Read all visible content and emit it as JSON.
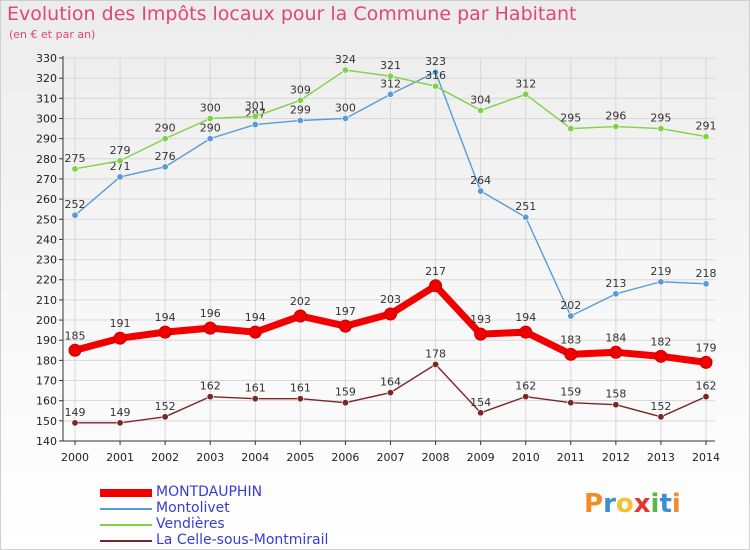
{
  "header": {
    "title": "Evolution des Impôts locaux pour la Commune par Habitant",
    "subtitle": "(en € et par an)"
  },
  "colors": {
    "title": "#e0457b",
    "grid": "#d8d8d8",
    "axis": "#333333"
  },
  "chart_data": {
    "type": "line",
    "categories": [
      "2000",
      "2001",
      "2002",
      "2003",
      "2004",
      "2005",
      "2006",
      "2007",
      "2008",
      "2009",
      "2010",
      "2011",
      "2012",
      "2013",
      "2014"
    ],
    "ylim": [
      140,
      330
    ],
    "yticks": [
      140,
      150,
      160,
      170,
      180,
      190,
      200,
      210,
      220,
      230,
      240,
      250,
      260,
      270,
      280,
      290,
      300,
      310,
      320,
      330
    ],
    "grid": true,
    "legend_position": "bottom-left",
    "series": [
      {
        "name": "MONTDAUPHIN",
        "color": "#f20000",
        "emphasis": true,
        "values": [
          185,
          191,
          194,
          196,
          194,
          202,
          197,
          203,
          217,
          193,
          194,
          183,
          184,
          182,
          179
        ]
      },
      {
        "name": "Montolivet",
        "color": "#5b9bd5",
        "emphasis": false,
        "values": [
          252,
          271,
          276,
          290,
          297,
          299,
          300,
          312,
          323,
          264,
          251,
          202,
          213,
          219,
          218
        ]
      },
      {
        "name": "Vendières",
        "color": "#7fd146",
        "emphasis": false,
        "values": [
          275,
          279,
          290,
          300,
          301,
          309,
          324,
          321,
          316,
          304,
          312,
          295,
          296,
          295,
          291
        ]
      },
      {
        "name": "La Celle-sous-Montmirail",
        "color": "#7b2626",
        "emphasis": false,
        "values": [
          149,
          149,
          152,
          162,
          161,
          161,
          159,
          164,
          178,
          154,
          162,
          159,
          158,
          152,
          162
        ]
      }
    ]
  },
  "legend": {
    "items": [
      {
        "label": "MONTDAUPHIN",
        "color": "#f20000",
        "label_color": "#3b3bd6"
      },
      {
        "label": "Montolivet",
        "color": "#5b9bd5",
        "label_color": "#3b3bd6"
      },
      {
        "label": "Vendières",
        "color": "#7fd146",
        "label_color": "#3b3bd6"
      },
      {
        "label": "La Celle-sous-Montmirail",
        "color": "#7b2626",
        "label_color": "#3b3bd6"
      }
    ]
  },
  "branding": {
    "logo_text": "Proxiti",
    "logo_colors": [
      "#f28c28",
      "#3a8fd6",
      "#f2c230",
      "#e2382f",
      "#59b64b",
      "#3a8fd6",
      "#f28c28"
    ]
  }
}
